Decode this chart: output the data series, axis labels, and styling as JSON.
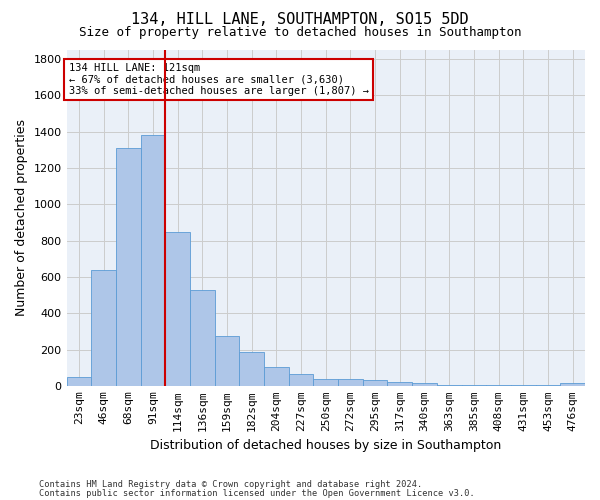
{
  "title": "134, HILL LANE, SOUTHAMPTON, SO15 5DD",
  "subtitle": "Size of property relative to detached houses in Southampton",
  "xlabel": "Distribution of detached houses by size in Southampton",
  "ylabel": "Number of detached properties",
  "footer_line1": "Contains HM Land Registry data © Crown copyright and database right 2024.",
  "footer_line2": "Contains public sector information licensed under the Open Government Licence v3.0.",
  "bar_labels": [
    "23sqm",
    "46sqm",
    "68sqm",
    "91sqm",
    "114sqm",
    "136sqm",
    "159sqm",
    "182sqm",
    "204sqm",
    "227sqm",
    "250sqm",
    "272sqm",
    "295sqm",
    "317sqm",
    "340sqm",
    "363sqm",
    "385sqm",
    "408sqm",
    "431sqm",
    "453sqm",
    "476sqm"
  ],
  "bar_values": [
    50,
    640,
    1310,
    1380,
    850,
    530,
    275,
    185,
    105,
    65,
    40,
    38,
    30,
    22,
    15,
    5,
    5,
    3,
    3,
    2,
    15
  ],
  "bar_color": "#aec6e8",
  "bar_edgecolor": "#5b9bd5",
  "vline_index": 4,
  "vline_color": "#cc0000",
  "ylim": [
    0,
    1850
  ],
  "yticks": [
    0,
    200,
    400,
    600,
    800,
    1000,
    1200,
    1400,
    1600,
    1800
  ],
  "annotation_text": "134 HILL LANE: 121sqm\n← 67% of detached houses are smaller (3,630)\n33% of semi-detached houses are larger (1,807) →",
  "annotation_box_color": "#ffffff",
  "annotation_box_edgecolor": "#cc0000",
  "grid_color": "#cccccc",
  "bg_color": "#eaf0f8",
  "title_fontsize": 11,
  "subtitle_fontsize": 9,
  "label_fontsize": 9,
  "tick_fontsize": 8
}
